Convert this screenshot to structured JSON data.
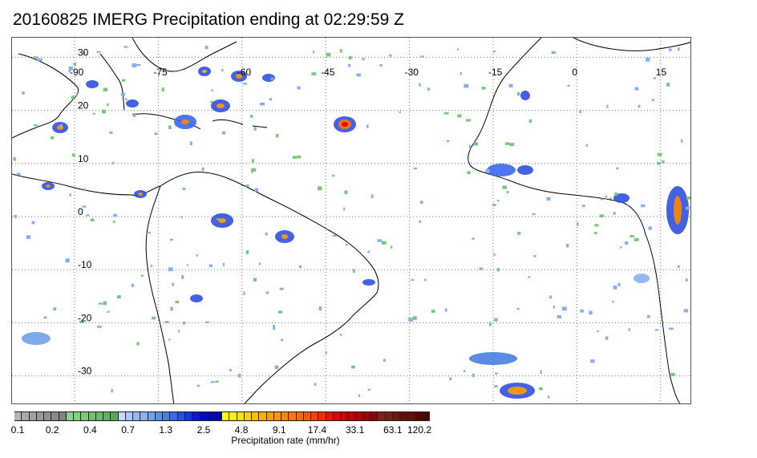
{
  "title": "20160825 IMERG Precipitation ending at 02:29:59 Z",
  "map": {
    "longitude_labels": [
      "-90",
      "-75",
      "-60",
      "-45",
      "-30",
      "-15",
      "0",
      "15"
    ],
    "latitude_labels": [
      "30",
      "20",
      "10",
      "0",
      "-10",
      "-20",
      "-30"
    ],
    "grid": true
  },
  "colorbar": {
    "title": "Precipitation rate (mm/hr)",
    "tick_labels": [
      "0.1",
      "0.2",
      "0.4",
      "0.7",
      "1.3",
      "2.5",
      "4.8",
      "9.1",
      "17.4",
      "33.1",
      "63.1",
      "120.2"
    ],
    "colors": [
      "#b4b4b4",
      "#a8a8a8",
      "#a0a0a0",
      "#989898",
      "#909090",
      "#888888",
      "#808080",
      "#88d888",
      "#80d080",
      "#78c878",
      "#70c070",
      "#68b868",
      "#60b060",
      "#58a858",
      "#c8d8f8",
      "#b0c8f8",
      "#98b8f0",
      "#88b0f0",
      "#70a0e8",
      "#5890e8",
      "#4880e0",
      "#3868f0",
      "#2050f0",
      "#1038e8",
      "#0018e0",
      "#0008d0",
      "#0000c0",
      "#0000a8",
      "#ffff00",
      "#fff000",
      "#ffe000",
      "#ffd000",
      "#ffc000",
      "#ffb000",
      "#ffa000",
      "#ff9800",
      "#ff8800",
      "#ff7800",
      "#ff6800",
      "#ff5800",
      "#ff4000",
      "#ff2800",
      "#f01000",
      "#e00000",
      "#d00000",
      "#c00000",
      "#b00000",
      "#a00000",
      "#900000",
      "#802020",
      "#782018",
      "#701810",
      "#681008",
      "#601008",
      "#580800",
      "#500000"
    ]
  }
}
